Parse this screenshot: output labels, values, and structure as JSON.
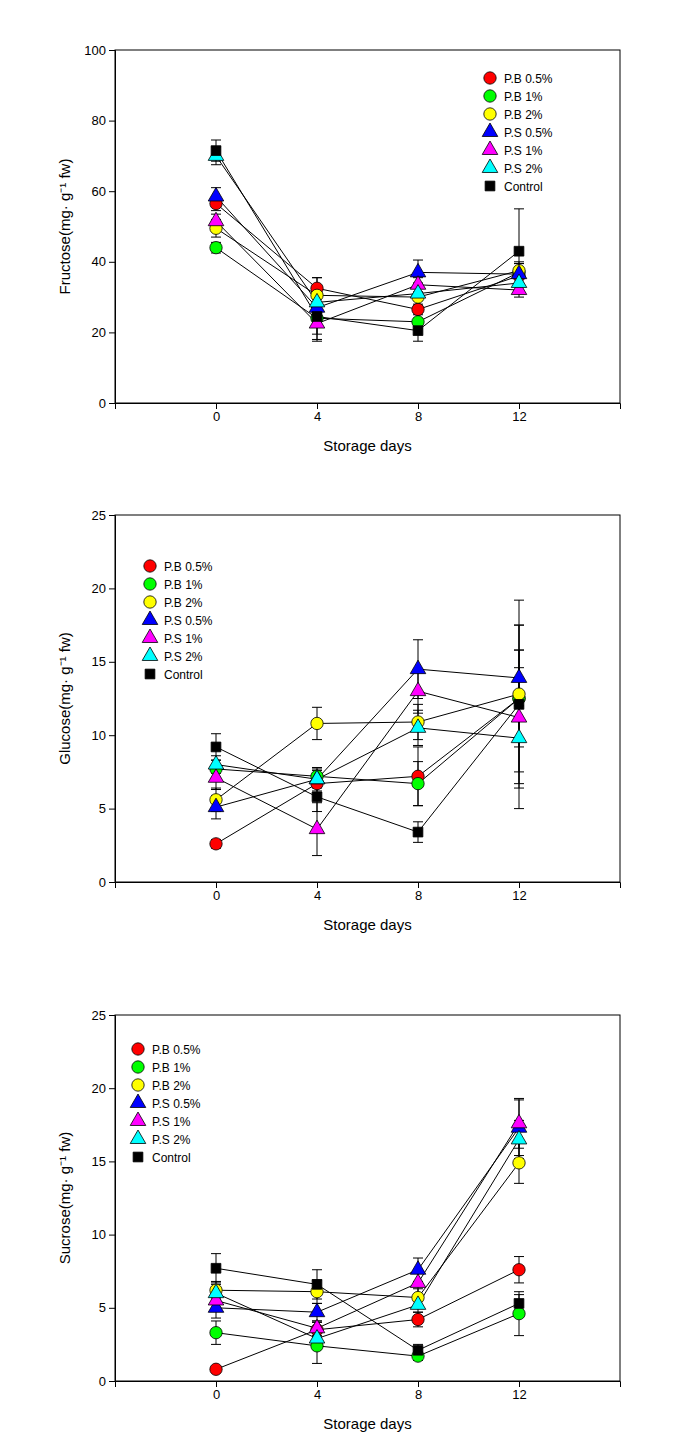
{
  "chart_data": [
    {
      "type": "line",
      "x_label": "Storage days",
      "y_label": "Fructose(mg· g⁻¹ fw)",
      "x": [
        0,
        4,
        8,
        12
      ],
      "xlim": [
        -4,
        16
      ],
      "xticks": [
        0,
        4,
        8,
        12
      ],
      "ylim": [
        0,
        100
      ],
      "yticks": [
        0,
        20,
        40,
        60,
        80,
        100
      ],
      "legend": "upper right",
      "series": [
        {
          "name": "P.B 0.5%",
          "color": "#ff0000",
          "marker": "circle",
          "values": [
            56.5,
            32.5,
            26.5,
            36
          ],
          "errors": [
            2,
            3,
            2.5,
            2
          ]
        },
        {
          "name": "P.B 1%",
          "color": "#00ff00",
          "marker": "circle",
          "values": [
            44,
            24,
            23,
            37
          ],
          "errors": [
            1.5,
            6,
            2,
            3
          ]
        },
        {
          "name": "P.B 2%",
          "color": "#ffff00",
          "marker": "circle",
          "values": [
            49.5,
            30.5,
            30,
            37.5
          ],
          "errors": [
            2.5,
            5,
            2.5,
            2
          ]
        },
        {
          "name": "P.S 0.5%",
          "color": "#0000ff",
          "marker": "triangle",
          "values": [
            58.5,
            27,
            37,
            36.5
          ],
          "errors": [
            2.5,
            3,
            3.5,
            3
          ]
        },
        {
          "name": "P.S 1%",
          "color": "#ff00ff",
          "marker": "triangle",
          "values": [
            51.5,
            22.5,
            33.5,
            32
          ],
          "errors": [
            2,
            3,
            2,
            2
          ]
        },
        {
          "name": "P.S 2%",
          "color": "#00ffff",
          "marker": "triangle",
          "values": [
            70,
            28.5,
            31,
            34
          ],
          "errors": [
            2.5,
            4,
            3,
            2
          ]
        },
        {
          "name": "Control",
          "color": "#000000",
          "marker": "square",
          "values": [
            71.5,
            24.5,
            20.5,
            43
          ],
          "errors": [
            3,
            7,
            3,
            12
          ]
        }
      ]
    },
    {
      "type": "line",
      "x_label": "Storage days",
      "y_label": "Glucose(mg· g⁻¹ fw)",
      "x": [
        0,
        4,
        8,
        12
      ],
      "xlim": [
        -4,
        16
      ],
      "xticks": [
        0,
        4,
        8,
        12
      ],
      "ylim": [
        0,
        25
      ],
      "yticks": [
        0,
        5,
        10,
        15,
        20,
        25
      ],
      "legend": "upper left",
      "series": [
        {
          "name": "P.B 0.5%",
          "color": "#ff0000",
          "marker": "circle",
          "values": [
            2.6,
            6.7,
            7.2,
            12.5
          ],
          "errors": [
            0.3,
            0.6,
            2,
            5
          ]
        },
        {
          "name": "P.B 1%",
          "color": "#00ff00",
          "marker": "circle",
          "values": [
            7.7,
            7.2,
            6.7,
            12.5
          ],
          "errors": [
            0.6,
            0.5,
            1.5,
            3.3
          ]
        },
        {
          "name": "P.B 2%",
          "color": "#ffff00",
          "marker": "circle",
          "values": [
            5.6,
            10.8,
            10.9,
            12.8
          ],
          "errors": [
            0.8,
            1.1,
            1.2,
            6.4
          ]
        },
        {
          "name": "P.S 0.5%",
          "color": "#0000ff",
          "marker": "triangle",
          "values": [
            5.1,
            7.0,
            14.5,
            13.9
          ],
          "errors": [
            0.8,
            0.8,
            2,
            1.9
          ]
        },
        {
          "name": "P.S 1%",
          "color": "#ff00ff",
          "marker": "triangle",
          "values": [
            7.1,
            3.6,
            13.0,
            11.2
          ],
          "errors": [
            0.8,
            1.8,
            1.5,
            1.4
          ]
        },
        {
          "name": "P.S 2%",
          "color": "#00ffff",
          "marker": "triangle",
          "values": [
            8.0,
            7.0,
            10.5,
            9.8
          ],
          "errors": [
            0.6,
            0.6,
            1.2,
            4.8
          ]
        },
        {
          "name": "Control",
          "color": "#000000",
          "marker": "square",
          "values": [
            9.2,
            5.8,
            3.4,
            12.1
          ],
          "errors": [
            0.9,
            1,
            0.7,
            5.4
          ]
        }
      ]
    },
    {
      "type": "line",
      "x_label": "Storage days",
      "y_label": "Sucrose(mg· g⁻¹ fw)",
      "x": [
        0,
        4,
        8,
        12
      ],
      "xlim": [
        -4,
        16
      ],
      "xticks": [
        0,
        4,
        8,
        12
      ],
      "ylim": [
        0,
        25
      ],
      "yticks": [
        0,
        5,
        10,
        15,
        20,
        25
      ],
      "legend": "upper left",
      "series": [
        {
          "name": "P.B 0.5%",
          "color": "#ff0000",
          "marker": "circle",
          "values": [
            0.8,
            3.5,
            4.2,
            7.6
          ],
          "errors": [
            0.1,
            0.5,
            0.5,
            0.9
          ]
        },
        {
          "name": "P.B 1%",
          "color": "#00ff00",
          "marker": "circle",
          "values": [
            3.3,
            2.4,
            1.7,
            4.6
          ],
          "errors": [
            0.8,
            1.2,
            0.3,
            1.5
          ]
        },
        {
          "name": "P.B 2%",
          "color": "#ffff00",
          "marker": "circle",
          "values": [
            6.2,
            6.1,
            5.7,
            14.9
          ],
          "errors": [
            0.6,
            0.8,
            0.6,
            1.4
          ]
        },
        {
          "name": "P.S 0.5%",
          "color": "#0000ff",
          "marker": "triangle",
          "values": [
            5.0,
            4.7,
            7.6,
            17.3
          ],
          "errors": [
            0.7,
            0.6,
            0.8,
            1.9
          ]
        },
        {
          "name": "P.S 1%",
          "color": "#ff00ff",
          "marker": "triangle",
          "values": [
            5.5,
            3.6,
            6.7,
            17.6
          ],
          "errors": [
            0.6,
            0.5,
            0.8,
            1.7
          ]
        },
        {
          "name": "P.S 2%",
          "color": "#00ffff",
          "marker": "triangle",
          "values": [
            6.0,
            2.9,
            5.2,
            16.5
          ],
          "errors": [
            0.6,
            0.5,
            0.5,
            1.3
          ]
        },
        {
          "name": "Control",
          "color": "#000000",
          "marker": "square",
          "values": [
            7.7,
            6.6,
            2.1,
            5.3
          ],
          "errors": [
            1,
            1,
            0.4,
            0.6
          ]
        }
      ]
    }
  ]
}
